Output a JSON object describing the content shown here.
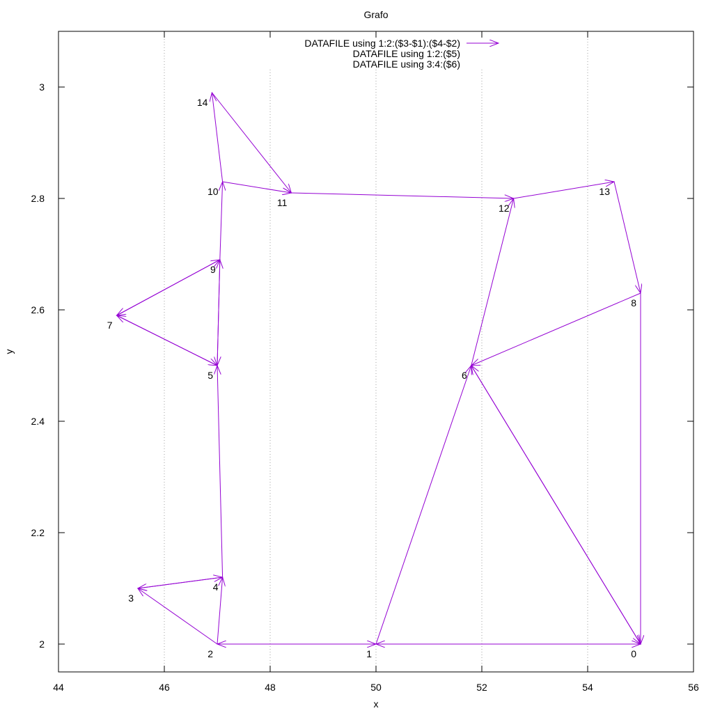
{
  "chart_data": {
    "type": "vector-graph",
    "title": "Grafo",
    "xlabel": "x",
    "ylabel": "y",
    "xlim": [
      44,
      56
    ],
    "ylim": [
      1.95,
      3.1
    ],
    "xticks": [
      44,
      46,
      48,
      50,
      52,
      54,
      56
    ],
    "xtick_labels": [
      "44",
      "46",
      "48",
      "50",
      "52",
      "54",
      "56"
    ],
    "yticks": [
      2,
      2.2,
      2.4,
      2.6,
      2.8,
      3
    ],
    "ytick_labels": [
      "2",
      "2.2",
      "2.4",
      "2.6",
      "2.8",
      "3"
    ],
    "grid": "vertical dotted at x ticks",
    "legend_position": "top-center",
    "legend": [
      "DATAFILE using 1:2:($3-$1):($4-$2)",
      "DATAFILE using 1:2:($5)",
      "DATAFILE using 3:4:($6)"
    ],
    "series_color": "#9400d3",
    "nodes": [
      {
        "id": "0",
        "x": 55.0,
        "y": 2.0
      },
      {
        "id": "1",
        "x": 50.0,
        "y": 2.0
      },
      {
        "id": "2",
        "x": 47.0,
        "y": 2.0
      },
      {
        "id": "3",
        "x": 45.5,
        "y": 2.1
      },
      {
        "id": "4",
        "x": 47.1,
        "y": 2.12
      },
      {
        "id": "5",
        "x": 47.0,
        "y": 2.5
      },
      {
        "id": "6",
        "x": 51.8,
        "y": 2.5
      },
      {
        "id": "7",
        "x": 45.1,
        "y": 2.59
      },
      {
        "id": "8",
        "x": 55.0,
        "y": 2.63
      },
      {
        "id": "9",
        "x": 47.05,
        "y": 2.69
      },
      {
        "id": "10",
        "x": 47.1,
        "y": 2.83
      },
      {
        "id": "11",
        "x": 48.4,
        "y": 2.81
      },
      {
        "id": "12",
        "x": 52.6,
        "y": 2.8
      },
      {
        "id": "13",
        "x": 54.5,
        "y": 2.83
      },
      {
        "id": "14",
        "x": 46.9,
        "y": 2.99
      }
    ],
    "edges": [
      {
        "from": "0",
        "to": "1"
      },
      {
        "from": "1",
        "to": "0"
      },
      {
        "from": "1",
        "to": "2"
      },
      {
        "from": "2",
        "to": "1"
      },
      {
        "from": "2",
        "to": "3"
      },
      {
        "from": "3",
        "to": "4"
      },
      {
        "from": "4",
        "to": "3"
      },
      {
        "from": "2",
        "to": "4"
      },
      {
        "from": "4",
        "to": "5"
      },
      {
        "from": "5",
        "to": "7"
      },
      {
        "from": "7",
        "to": "5"
      },
      {
        "from": "7",
        "to": "9"
      },
      {
        "from": "9",
        "to": "7"
      },
      {
        "from": "5",
        "to": "9"
      },
      {
        "from": "9",
        "to": "5"
      },
      {
        "from": "9",
        "to": "10"
      },
      {
        "from": "10",
        "to": "14"
      },
      {
        "from": "14",
        "to": "11"
      },
      {
        "from": "10",
        "to": "11"
      },
      {
        "from": "11",
        "to": "12"
      },
      {
        "from": "12",
        "to": "13"
      },
      {
        "from": "13",
        "to": "8"
      },
      {
        "from": "8",
        "to": "6"
      },
      {
        "from": "8",
        "to": "0"
      },
      {
        "from": "6",
        "to": "0"
      },
      {
        "from": "0",
        "to": "6"
      },
      {
        "from": "1",
        "to": "6"
      },
      {
        "from": "6",
        "to": "12"
      }
    ]
  }
}
